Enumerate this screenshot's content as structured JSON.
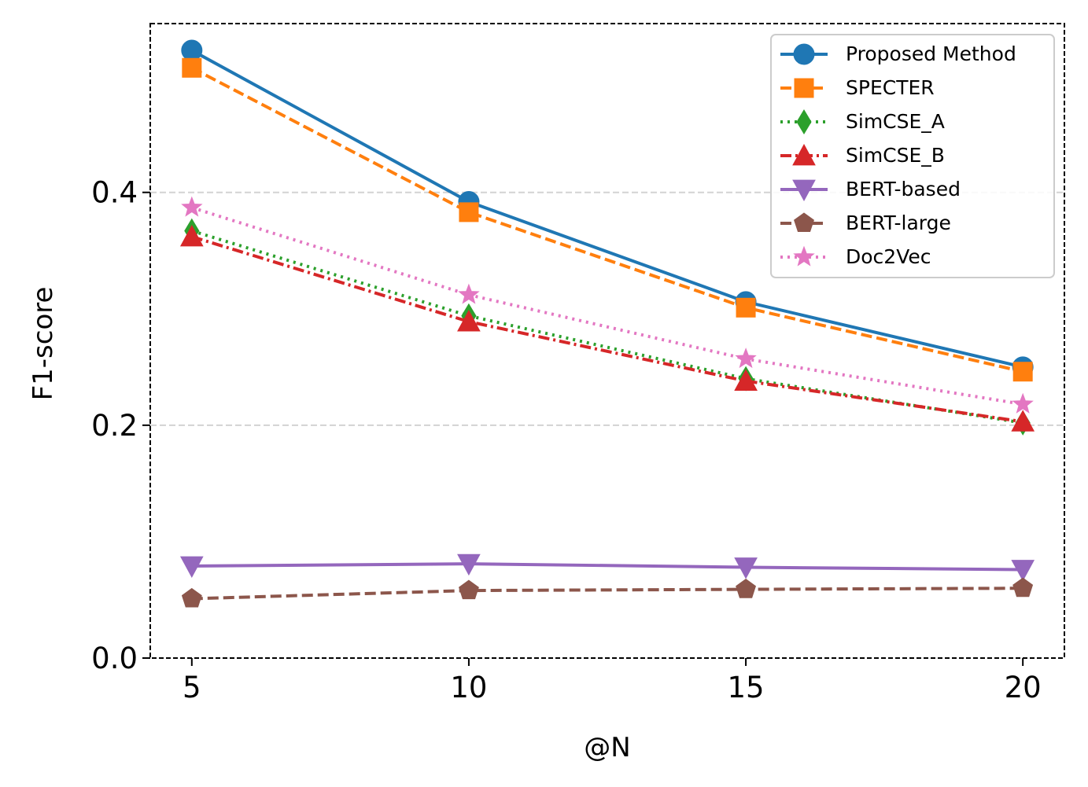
{
  "chart_data": {
    "type": "line",
    "title": "",
    "xlabel": "@N",
    "ylabel": "F1-score",
    "x": [
      5,
      10,
      15,
      20
    ],
    "xticks": [
      "5",
      "10",
      "15",
      "20"
    ],
    "yticks": [
      "0.0",
      "0.2",
      "0.4"
    ],
    "ytick_values": [
      0.0,
      0.2,
      0.4
    ],
    "xlim": [
      4.25,
      20.75
    ],
    "ylim": [
      0.0,
      0.545
    ],
    "grid": "horizontal dashed",
    "legend_position": "top-right",
    "series": [
      {
        "name": "Proposed Method",
        "values": [
          0.522,
          0.392,
          0.306,
          0.25
        ],
        "color": "#1f77b4",
        "dash": "solid",
        "marker": "circle"
      },
      {
        "name": "SPECTER",
        "values": [
          0.507,
          0.383,
          0.301,
          0.246
        ],
        "color": "#ff7f0e",
        "dash": "dashed",
        "marker": "square"
      },
      {
        "name": "SimCSE_A",
        "values": [
          0.367,
          0.294,
          0.24,
          0.202
        ],
        "color": "#2ca02c",
        "dash": "dotted",
        "marker": "diamond"
      },
      {
        "name": "SimCSE_B",
        "values": [
          0.362,
          0.289,
          0.238,
          0.203
        ],
        "color": "#d62728",
        "dash": "dashdot",
        "marker": "triangle-up"
      },
      {
        "name": "BERT-based",
        "values": [
          0.079,
          0.081,
          0.078,
          0.076
        ],
        "color": "#9467bd",
        "dash": "solid",
        "marker": "triangle-down"
      },
      {
        "name": "BERT-large",
        "values": [
          0.051,
          0.058,
          0.059,
          0.06
        ],
        "color": "#8c564b",
        "dash": "dashed",
        "marker": "pentagon"
      },
      {
        "name": "Doc2Vec",
        "values": [
          0.387,
          0.312,
          0.257,
          0.218
        ],
        "color": "#e377c2",
        "dash": "dotted",
        "marker": "star"
      }
    ]
  }
}
